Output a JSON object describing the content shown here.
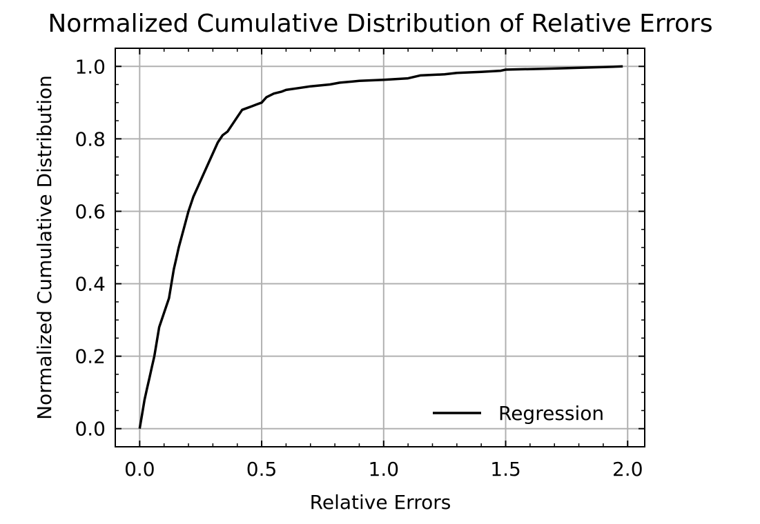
{
  "chart_data": {
    "type": "line",
    "title": "Normalized Cumulative Distribution of Relative Errors",
    "xlabel": "Relative Errors",
    "ylabel": "Normalized Cumulative Distribution",
    "xlim": [
      -0.1,
      2.07
    ],
    "ylim": [
      -0.05,
      1.05
    ],
    "x_ticks": [
      0.0,
      0.5,
      1.0,
      1.5,
      2.0
    ],
    "x_tick_labels": [
      "0.0",
      "0.5",
      "1.0",
      "1.5",
      "2.0"
    ],
    "y_ticks": [
      0.0,
      0.2,
      0.4,
      0.6,
      0.8,
      1.0
    ],
    "y_tick_labels": [
      "0.0",
      "0.2",
      "0.4",
      "0.6",
      "0.8",
      "1.0"
    ],
    "grid": true,
    "legend_position": "lower-right",
    "series": [
      {
        "name": "Regression",
        "color": "#000000",
        "x": [
          0.0,
          0.01,
          0.02,
          0.03,
          0.04,
          0.05,
          0.06,
          0.07,
          0.08,
          0.1,
          0.12,
          0.13,
          0.14,
          0.15,
          0.16,
          0.18,
          0.2,
          0.22,
          0.24,
          0.26,
          0.28,
          0.3,
          0.32,
          0.34,
          0.36,
          0.38,
          0.4,
          0.42,
          0.44,
          0.46,
          0.48,
          0.5,
          0.52,
          0.55,
          0.58,
          0.6,
          0.65,
          0.7,
          0.78,
          0.82,
          0.9,
          1.0,
          1.1,
          1.15,
          1.25,
          1.3,
          1.4,
          1.48,
          1.5,
          1.7,
          1.9,
          1.98
        ],
        "y": [
          0.0,
          0.04,
          0.08,
          0.11,
          0.14,
          0.17,
          0.2,
          0.24,
          0.28,
          0.32,
          0.36,
          0.4,
          0.44,
          0.47,
          0.5,
          0.55,
          0.6,
          0.64,
          0.67,
          0.7,
          0.73,
          0.76,
          0.79,
          0.81,
          0.82,
          0.84,
          0.86,
          0.88,
          0.885,
          0.89,
          0.895,
          0.9,
          0.915,
          0.925,
          0.93,
          0.935,
          0.94,
          0.945,
          0.95,
          0.955,
          0.96,
          0.963,
          0.967,
          0.975,
          0.978,
          0.982,
          0.985,
          0.988,
          0.991,
          0.994,
          0.998,
          1.0
        ]
      }
    ]
  }
}
